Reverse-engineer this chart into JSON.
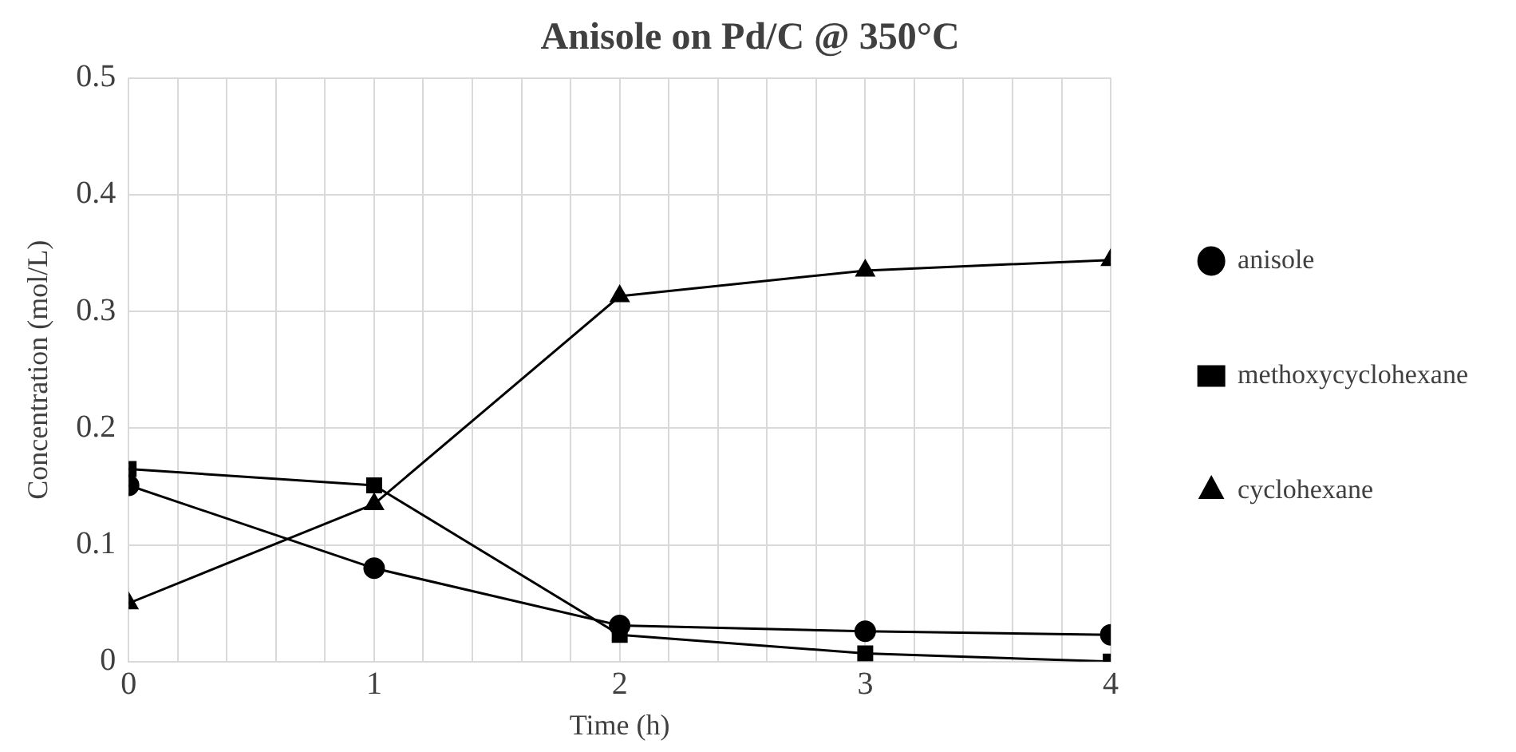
{
  "chart_data": {
    "type": "line",
    "title": "Anisole on Pd/C @ 350°C",
    "xlabel": "Time (h)",
    "ylabel": "Concentration (mol/L)",
    "x": [
      0,
      1,
      2,
      3,
      4
    ],
    "series": [
      {
        "name": "anisole",
        "color": "#000000",
        "marker": "circle",
        "values": [
          0.151,
          0.08,
          0.031,
          0.026,
          0.023
        ]
      },
      {
        "name": "methoxycyclohexane",
        "color": "#000000",
        "marker": "square",
        "values": [
          0.165,
          0.151,
          0.023,
          0.007,
          0.0
        ]
      },
      {
        "name": "cyclohexane",
        "color": "#000000",
        "marker": "triangle",
        "values": [
          0.05,
          0.135,
          0.313,
          0.335,
          0.344
        ]
      }
    ],
    "xlim": [
      0,
      4
    ],
    "xticks": [
      0,
      {
        "value": 0.2,
        "label": null
      },
      {
        "value": 0.4,
        "label": null
      },
      {
        "value": 0.6,
        "label": null
      },
      {
        "value": 0.8,
        "label": null
      },
      1,
      {
        "value": 1.2,
        "label": null
      },
      {
        "value": 1.4,
        "label": null
      },
      {
        "value": 1.6,
        "label": null
      },
      {
        "value": 1.8,
        "label": null
      },
      2,
      {
        "value": 2.2,
        "label": null
      },
      {
        "value": 2.4,
        "label": null
      },
      {
        "value": 2.6,
        "label": null
      },
      {
        "value": 2.8,
        "label": null
      },
      3,
      {
        "value": 3.2,
        "label": null
      },
      {
        "value": 3.4,
        "label": null
      },
      {
        "value": 3.6,
        "label": null
      },
      {
        "value": 3.8,
        "label": null
      },
      4
    ],
    "ylim": [
      0,
      0.5
    ],
    "yticks": [
      0,
      0.1,
      0.2,
      0.3,
      0.4,
      0.5
    ],
    "grid": true,
    "legend": "right",
    "line_style": "solid"
  }
}
